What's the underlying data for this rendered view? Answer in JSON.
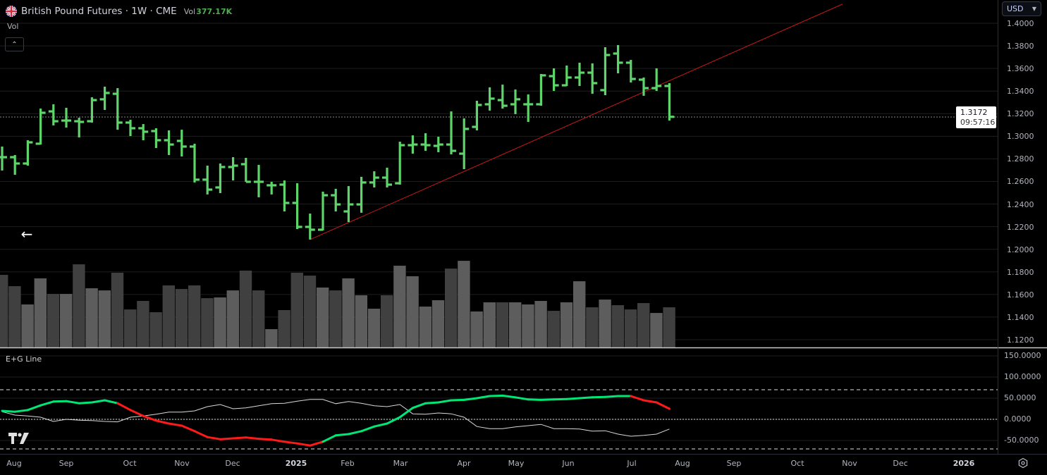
{
  "header": {
    "title": "British Pound Futures · 1W · CME",
    "vol_label": "Vol",
    "vol_value": "377.17K",
    "currency": "USD"
  },
  "volume_pane": {
    "title": "Vol"
  },
  "indicator_pane": {
    "title": "E+G Line"
  },
  "last_price": {
    "price": "1.3172",
    "countdown": "09:57:16"
  },
  "price_axis": [
    "1.4000",
    "1.3800",
    "1.3600",
    "1.3400",
    "1.3200",
    "1.3000",
    "1.2800",
    "1.2600",
    "1.2400",
    "1.2200",
    "1.2000",
    "1.1800",
    "1.1600",
    "1.1400",
    "1.1200"
  ],
  "indicator_axis": [
    "150.0000",
    "100.0000",
    "50.0000",
    "0.0000",
    "-50.0000"
  ],
  "time_axis": [
    "Aug",
    "Sep",
    "Oct",
    "Nov",
    "Dec",
    "2025",
    "Feb",
    "Mar",
    "Apr",
    "May",
    "Jun",
    "Jul",
    "Aug",
    "Sep",
    "Oct",
    "Nov",
    "Dec",
    "2026"
  ],
  "colors": {
    "bar": "#5ed46a",
    "bull_line": "#00e676",
    "bear_line": "#ff1a1a",
    "signal_line": "#d9d9d9",
    "trendline": "#c41a1a",
    "vol_up": "#5d5d5d",
    "vol_down": "#404040"
  },
  "chart_data": {
    "type": "ohlc",
    "title": "British Pound Futures · 1W · CME",
    "ylim": [
      1.12,
      1.4
    ],
    "ohlc": [
      [
        1.2815,
        1.2909,
        1.2697,
        1.2815
      ],
      [
        1.2815,
        1.2834,
        1.2659,
        1.2759
      ],
      [
        1.2759,
        1.2965,
        1.274,
        1.2946
      ],
      [
        1.2934,
        1.3245,
        1.2927,
        1.3208
      ],
      [
        1.322,
        1.3283,
        1.3096,
        1.3133
      ],
      [
        1.3139,
        1.3252,
        1.3077,
        1.3139
      ],
      [
        1.3133,
        1.3164,
        1.299,
        1.3127
      ],
      [
        1.3133,
        1.3345,
        1.3121,
        1.332
      ],
      [
        1.3327,
        1.3439,
        1.3233,
        1.3383
      ],
      [
        1.3376,
        1.3426,
        1.3058,
        1.3121
      ],
      [
        1.3121,
        1.3146,
        1.3002,
        1.3071
      ],
      [
        1.3071,
        1.3108,
        1.2965,
        1.304
      ],
      [
        1.3046,
        1.3071,
        1.2896,
        1.2965
      ],
      [
        1.2965,
        1.3052,
        1.2834,
        1.2927
      ],
      [
        1.2959,
        1.3058,
        1.2821,
        1.2909
      ],
      [
        1.2909,
        1.2934,
        1.2591,
        1.2616
      ],
      [
        1.2616,
        1.274,
        1.2485,
        1.2528
      ],
      [
        1.2547,
        1.2759,
        1.2497,
        1.2728
      ],
      [
        1.2728,
        1.2815,
        1.2609,
        1.274
      ],
      [
        1.2753,
        1.2809,
        1.2597,
        1.2597
      ],
      [
        1.2597,
        1.2747,
        1.246,
        1.2597
      ],
      [
        1.2566,
        1.2597,
        1.2485,
        1.2566
      ],
      [
        1.2572,
        1.2609,
        1.2335,
        1.241
      ],
      [
        1.241,
        1.2584,
        1.2179,
        1.2198
      ],
      [
        1.2198,
        1.2316,
        1.2086,
        1.2173
      ],
      [
        1.2173,
        1.251,
        1.2167,
        1.2478
      ],
      [
        1.2478,
        1.2535,
        1.2335,
        1.2397
      ],
      [
        1.2335,
        1.2559,
        1.2241,
        1.2397
      ],
      [
        1.2397,
        1.2641,
        1.2323,
        1.2591
      ],
      [
        1.2591,
        1.269,
        1.2547,
        1.2634
      ],
      [
        1.2634,
        1.2722,
        1.2547,
        1.2572
      ],
      [
        1.2584,
        1.2952,
        1.2572,
        1.2921
      ],
      [
        1.2921,
        1.3008,
        1.2846,
        1.2927
      ],
      [
        1.2927,
        1.3027,
        1.2871,
        1.2921
      ],
      [
        1.2915,
        1.2996,
        1.2859,
        1.2927
      ],
      [
        1.2927,
        1.322,
        1.284,
        1.2871
      ],
      [
        1.2846,
        1.3158,
        1.2709,
        1.3065
      ],
      [
        1.3083,
        1.3314,
        1.3052,
        1.3277
      ],
      [
        1.3283,
        1.3433,
        1.3227,
        1.3333
      ],
      [
        1.332,
        1.3457,
        1.3245,
        1.327
      ],
      [
        1.3283,
        1.3414,
        1.3196,
        1.3327
      ],
      [
        1.3283,
        1.337,
        1.3127,
        1.3283
      ],
      [
        1.3283,
        1.3551,
        1.327,
        1.3539
      ],
      [
        1.3532,
        1.3601,
        1.3401,
        1.3451
      ],
      [
        1.3451,
        1.3626,
        1.3445,
        1.352
      ],
      [
        1.352,
        1.3651,
        1.3445,
        1.3563
      ],
      [
        1.3563,
        1.3645,
        1.3376,
        1.347
      ],
      [
        1.3408,
        1.3788,
        1.3364,
        1.3719
      ],
      [
        1.3732,
        1.3807,
        1.3557,
        1.3651
      ],
      [
        1.3651,
        1.3676,
        1.3476,
        1.3507
      ],
      [
        1.3501,
        1.352,
        1.3358,
        1.3426
      ],
      [
        1.3426,
        1.3601,
        1.3401,
        1.3445
      ],
      [
        1.3445,
        1.347,
        1.3139,
        1.3172
      ]
    ],
    "volume_k": [
      682,
      576,
      404,
      649,
      503,
      503,
      781,
      556,
      536,
      702,
      357,
      437,
      331,
      583,
      549,
      583,
      463,
      470,
      536,
      722,
      536,
      172,
      351,
      702,
      675,
      563,
      536,
      649,
      490,
      364,
      490,
      768,
      669,
      384,
      444,
      741,
      814,
      338,
      424,
      424,
      424,
      404,
      437,
      344,
      424,
      622,
      377,
      450,
      397,
      357,
      417,
      324,
      377.17
    ],
    "volume_up": [
      0,
      0,
      1,
      1,
      0,
      1,
      0,
      1,
      1,
      0,
      0,
      0,
      0,
      0,
      0,
      0,
      0,
      1,
      1,
      0,
      0,
      1,
      0,
      0,
      0,
      1,
      0,
      1,
      1,
      1,
      0,
      1,
      1,
      1,
      1,
      0,
      1,
      1,
      1,
      0,
      1,
      1,
      1,
      0,
      1,
      1,
      0,
      1,
      0,
      0,
      0,
      1,
      0
    ],
    "trendline": {
      "from": [
        24,
        1.2086
      ],
      "to_price_at_bar": [
        65.5,
        1.417
      ]
    },
    "indicator": {
      "ylim": [
        -75,
        155
      ],
      "levels": [
        70,
        0,
        -70
      ],
      "eg_line": [
        20,
        18,
        22,
        33,
        42,
        43,
        38,
        40,
        45,
        38,
        22,
        8,
        -3,
        -10,
        -15,
        -28,
        -42,
        -47,
        -45,
        -43,
        -46,
        -48,
        -53,
        -57,
        -62,
        -53,
        -38,
        -35,
        -28,
        -17,
        -10,
        5,
        27,
        38,
        40,
        45,
        46,
        50,
        55,
        56,
        52,
        47,
        46,
        47,
        48,
        50,
        52,
        53,
        55,
        55,
        45,
        40,
        25
      ],
      "eg_state": [
        "bull",
        "bull",
        "bull",
        "bull",
        "bull",
        "bull",
        "bull",
        "bull",
        "bull",
        "bull",
        "bear",
        "bear",
        "bear",
        "bear",
        "bear",
        "bear",
        "bear",
        "bear",
        "bear",
        "bear",
        "bear",
        "bear",
        "bear",
        "bear",
        "bear",
        "bear",
        "bull",
        "bull",
        "bull",
        "bull",
        "bull",
        "bull",
        "bull",
        "bull",
        "bull",
        "bull",
        "bull",
        "bull",
        "bull",
        "bull",
        "bull",
        "bull",
        "bull",
        "bull",
        "bull",
        "bull",
        "bull",
        "bull",
        "bull",
        "bull",
        "bear",
        "bear",
        "bear"
      ],
      "signal_line": [
        18,
        10,
        8,
        5,
        -5,
        0,
        -2,
        -3,
        -5,
        -6,
        5,
        8,
        12,
        17,
        17,
        20,
        30,
        35,
        25,
        27,
        32,
        37,
        38,
        43,
        47,
        47,
        37,
        42,
        38,
        32,
        30,
        35,
        13,
        12,
        15,
        13,
        5,
        -17,
        -22,
        -22,
        -18,
        -15,
        -12,
        -22,
        -22,
        -23,
        -28,
        -27,
        -35,
        -40,
        -38,
        -35,
        -23
      ]
    }
  }
}
